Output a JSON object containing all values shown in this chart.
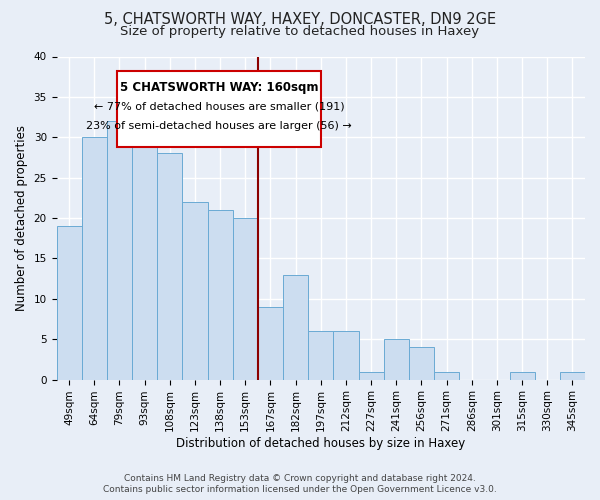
{
  "title": "5, CHATSWORTH WAY, HAXEY, DONCASTER, DN9 2GE",
  "subtitle": "Size of property relative to detached houses in Haxey",
  "xlabel": "Distribution of detached houses by size in Haxey",
  "ylabel": "Number of detached properties",
  "bar_values": [
    19,
    30,
    32,
    29,
    28,
    22,
    21,
    20,
    9,
    13,
    6,
    6,
    1,
    5,
    4,
    1,
    0,
    0,
    1,
    0,
    1
  ],
  "bar_labels": [
    "49sqm",
    "64sqm",
    "79sqm",
    "93sqm",
    "108sqm",
    "123sqm",
    "138sqm",
    "153sqm",
    "167sqm",
    "182sqm",
    "197sqm",
    "212sqm",
    "227sqm",
    "241sqm",
    "256sqm",
    "271sqm",
    "286sqm",
    "301sqm",
    "315sqm",
    "330sqm",
    "345sqm"
  ],
  "bar_color": "#ccddf0",
  "bar_edge_color": "#6aaad4",
  "background_color": "#e8eef7",
  "grid_color": "#ffffff",
  "vline_x": 7.5,
  "vline_color": "#8b0000",
  "annotation_title": "5 CHATSWORTH WAY: 160sqm",
  "annotation_line1": "← 77% of detached houses are smaller (191)",
  "annotation_line2": "23% of semi-detached houses are larger (56) →",
  "annotation_box_color": "#ffffff",
  "annotation_box_edge": "#cc0000",
  "ylim": [
    0,
    40
  ],
  "yticks": [
    0,
    5,
    10,
    15,
    20,
    25,
    30,
    35,
    40
  ],
  "footer_line1": "Contains HM Land Registry data © Crown copyright and database right 2024.",
  "footer_line2": "Contains public sector information licensed under the Open Government Licence v3.0.",
  "title_fontsize": 10.5,
  "subtitle_fontsize": 9.5,
  "axis_label_fontsize": 8.5,
  "tick_fontsize": 7.5,
  "footer_fontsize": 6.5,
  "annotation_title_fontsize": 8.5,
  "annotation_text_fontsize": 8.0
}
